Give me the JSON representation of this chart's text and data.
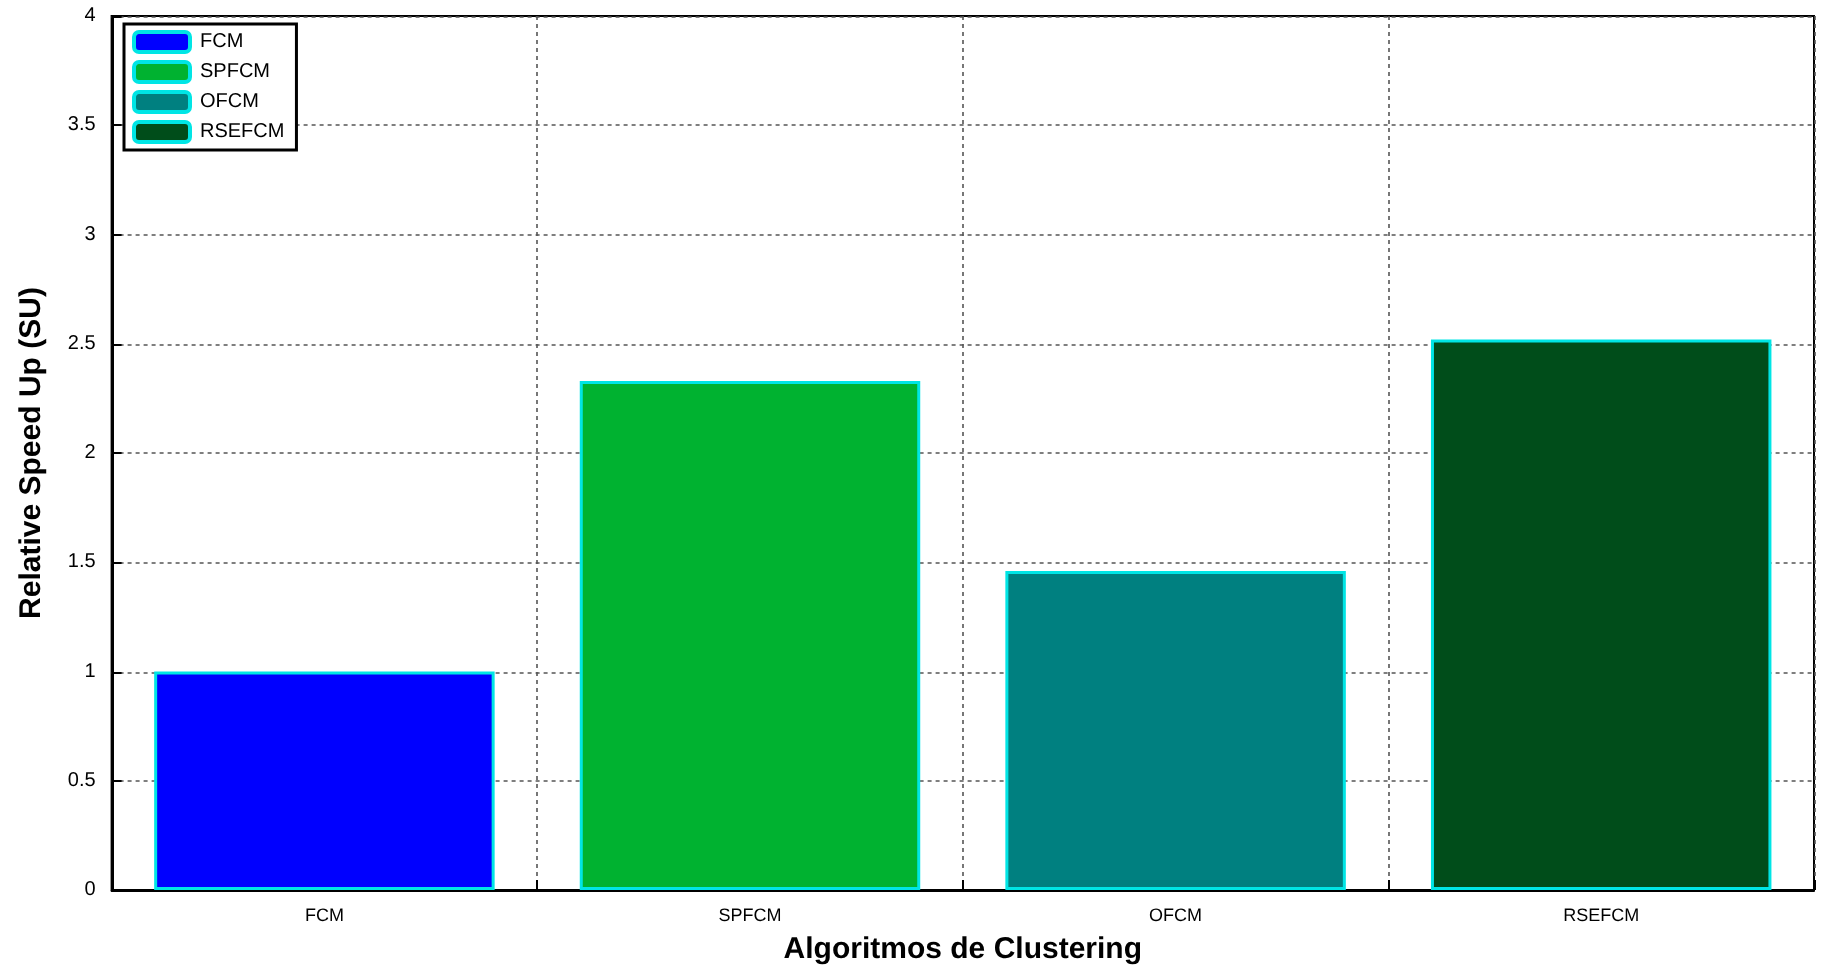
{
  "chart_data": {
    "type": "bar",
    "xlabel": "Algoritmos de Clustering",
    "ylabel": "Relative Speed Up (SU)",
    "categories": [
      "FCM",
      "SPFCM",
      "OFCM",
      "RSEFCM"
    ],
    "series": [
      {
        "name": "FCM",
        "color": "#0000ff",
        "values": [
          1.0,
          null,
          null,
          null
        ]
      },
      {
        "name": "SPFCM",
        "color": "#00b230",
        "values": [
          null,
          2.33,
          null,
          null
        ]
      },
      {
        "name": "OFCM",
        "color": "#008080",
        "values": [
          null,
          null,
          1.46,
          null
        ]
      },
      {
        "name": "RSEFCM",
        "color": "#004d1a",
        "values": [
          null,
          null,
          null,
          2.52
        ]
      }
    ],
    "ylim": [
      0,
      4
    ],
    "yticks": [
      0,
      0.5,
      1,
      1.5,
      2,
      2.5,
      3,
      3.5,
      4
    ],
    "grid": true,
    "legend": "top left"
  }
}
